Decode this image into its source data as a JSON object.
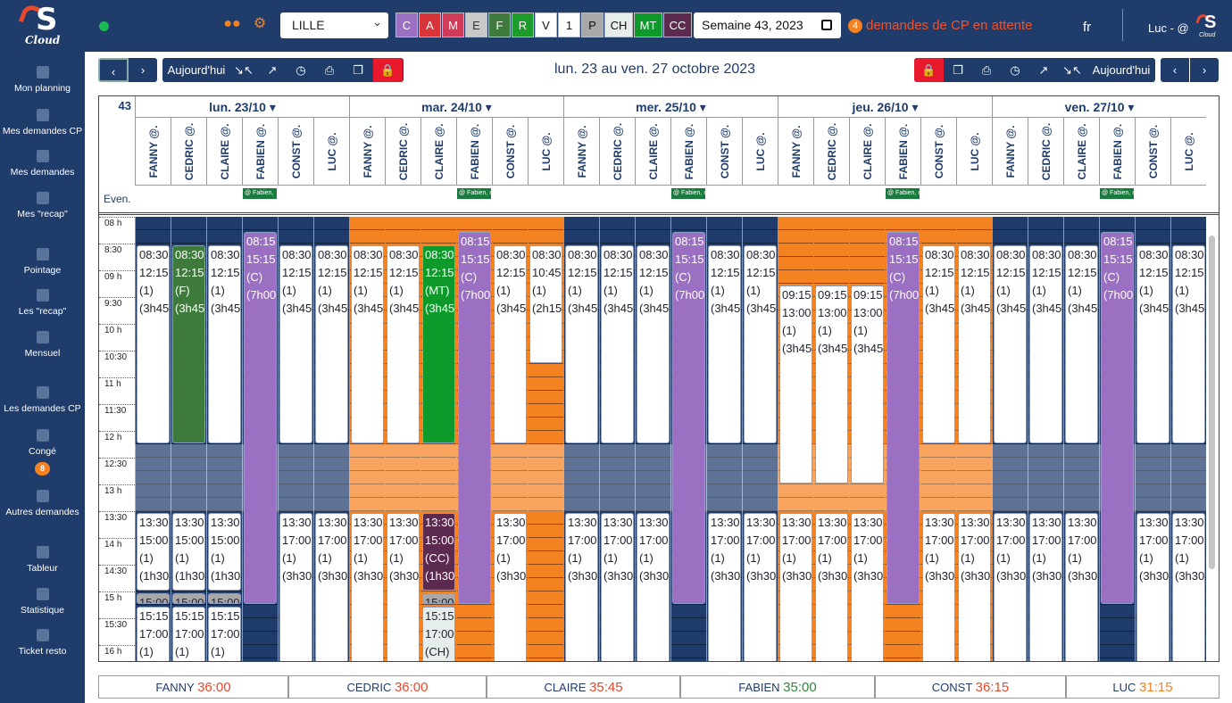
{
  "app": {
    "logo_text": "S",
    "logo_sub": "Cloud"
  },
  "sidebar": {
    "items": [
      {
        "label": "Mon planning",
        "icon": "calendar-icon"
      },
      {
        "label": "Mes demandes CP",
        "icon": "document-icon"
      },
      {
        "label": "Mes demandes",
        "icon": "document-icon"
      },
      {
        "label": "Mes \"recap\"",
        "icon": "clock-icon"
      },
      {
        "label": "Pointage",
        "icon": "pen-icon"
      },
      {
        "label": "Les \"recap\"",
        "icon": "table-icon"
      },
      {
        "label": "Mensuel",
        "icon": "calendar-icon"
      },
      {
        "label": "Les demandes CP",
        "icon": "documents-icon"
      },
      {
        "label": "Congé",
        "icon": "calendar-icon",
        "badge": "8"
      },
      {
        "label": "Autres demandes",
        "icon": "document-icon"
      },
      {
        "label": "Tableur",
        "icon": "pencil-icon"
      },
      {
        "label": "Statistique",
        "icon": "bar-chart-icon"
      },
      {
        "label": "Ticket resto",
        "icon": "rss-icon"
      }
    ]
  },
  "header": {
    "site": "LILLE",
    "legend": [
      {
        "code": "C",
        "bg": "#9b6fc1",
        "fg": "#fff"
      },
      {
        "code": "A",
        "bg": "#d9343a",
        "fg": "#fff"
      },
      {
        "code": "M",
        "bg": "#cf3b59",
        "fg": "#fff"
      },
      {
        "code": "E",
        "bg": "#c9c9c9",
        "fg": "#333"
      },
      {
        "code": "F",
        "bg": "#3e7a3c",
        "fg": "#fff"
      },
      {
        "code": "R",
        "bg": "#1d9b2b",
        "fg": "#fff"
      },
      {
        "code": "V",
        "bg": "#ffffff",
        "fg": "#111"
      },
      {
        "code": "1",
        "bg": "#ffffff",
        "fg": "#111"
      },
      {
        "code": "P",
        "bg": "#a8a8a8",
        "fg": "#111"
      },
      {
        "code": "CH",
        "bg": "#e6eeec",
        "fg": "#111"
      },
      {
        "code": "MT",
        "bg": "#0e9a2a",
        "fg": "#fff"
      },
      {
        "code": "CC",
        "bg": "#5b2a4e",
        "fg": "#fff"
      }
    ],
    "week": "Semaine 43, 2023",
    "pending_count": "4",
    "pending_text": "demandes de CP en attente",
    "lang": "fr",
    "user": "Luc - @"
  },
  "toolbar": {
    "today": "Aujourd'hui",
    "range": "lun. 23 au ven. 27 octobre 2023",
    "prev": "‹",
    "next": "›"
  },
  "calendar": {
    "week_no": "43",
    "even_label": "Even.",
    "days": [
      {
        "label": "lun. 23/10 ▾",
        "event": "@ Fabien, ",
        "event_col": 3
      },
      {
        "label": "mar. 24/10 ▾",
        "event": "@ Fabien, c",
        "event_col": 3
      },
      {
        "label": "mer. 25/10 ▾",
        "event": "@ Fabien, c",
        "event_col": 3
      },
      {
        "label": "jeu. 26/10 ▾",
        "event": "@ Fabien, c",
        "event_col": 3
      },
      {
        "label": "ven. 27/10 ▾",
        "event": "@ Fabien, c",
        "event_col": 3
      }
    ],
    "employees": [
      "FANNY @.",
      "CEDRIC @.",
      "CLAIRE @.",
      "FABIEN @.",
      "CONST @.",
      "LUC @."
    ],
    "times": [
      "08 h",
      "8:30",
      "09 h",
      "9:30",
      "10 h",
      "10:30",
      "11 h",
      "11:30",
      "12 h",
      "12:30",
      "13 h",
      "13:30",
      "14 h",
      "14:30",
      "15 h",
      "15:30",
      "16 h"
    ],
    "day_colors": [
      "#1f3c6b",
      "#f58220",
      "#1f3c6b",
      "#f58220",
      "#1f3c6b"
    ],
    "blocks": [
      {
        "d": 0,
        "c": 0,
        "s": 8.5,
        "e": 12.25,
        "l": [
          "08:30",
          "12:15",
          "(1)",
          "(3h45"
        ]
      },
      {
        "d": 0,
        "c": 1,
        "s": 8.5,
        "e": 12.25,
        "l": [
          "08:30",
          "12:15",
          "(F)",
          "(3h45"
        ],
        "bg": "#3e7a3c",
        "fg": "#fff"
      },
      {
        "d": 0,
        "c": 2,
        "s": 8.5,
        "e": 12.25,
        "l": [
          "08:30",
          "12:15",
          "(1)",
          "(3h45"
        ]
      },
      {
        "d": 0,
        "c": 3,
        "s": 8.25,
        "e": 15.25,
        "l": [
          "08:15",
          "15:15",
          "(C)",
          "(7h00"
        ],
        "bg": "#9b6fc1",
        "fg": "#fff"
      },
      {
        "d": 0,
        "c": 4,
        "s": 8.5,
        "e": 12.25,
        "l": [
          "08:30",
          "12:15",
          "(1)",
          "(3h45"
        ]
      },
      {
        "d": 0,
        "c": 5,
        "s": 8.5,
        "e": 12.25,
        "l": [
          "08:30",
          "12:15",
          "(1)",
          "(3h45"
        ]
      },
      {
        "d": 0,
        "c": 0,
        "s": 13.5,
        "e": 15.0,
        "l": [
          "13:30",
          "15:00",
          "(1)",
          "(1h30"
        ]
      },
      {
        "d": 0,
        "c": 1,
        "s": 13.5,
        "e": 15.0,
        "l": [
          "13:30",
          "15:00",
          "(1)",
          "(1h30"
        ]
      },
      {
        "d": 0,
        "c": 2,
        "s": 13.5,
        "e": 15.0,
        "l": [
          "13:30",
          "15:00",
          "(1)",
          "(1h30"
        ]
      },
      {
        "d": 0,
        "c": 4,
        "s": 13.5,
        "e": 17.0,
        "l": [
          "13:30",
          "17:00",
          "(1)",
          "(3h30"
        ]
      },
      {
        "d": 0,
        "c": 5,
        "s": 13.5,
        "e": 17.0,
        "l": [
          "13:30",
          "17:00",
          "(1)",
          "(3h30"
        ]
      },
      {
        "d": 0,
        "c": 0,
        "s": 15.0,
        "e": 15.25,
        "l": [
          "15:00"
        ],
        "bg": "#a8a8a8"
      },
      {
        "d": 0,
        "c": 1,
        "s": 15.0,
        "e": 15.25,
        "l": [
          "15:00"
        ],
        "bg": "#a8a8a8"
      },
      {
        "d": 0,
        "c": 2,
        "s": 15.0,
        "e": 15.25,
        "l": [
          "15:00"
        ],
        "bg": "#a8a8a8"
      },
      {
        "d": 0,
        "c": 0,
        "s": 15.25,
        "e": 17.0,
        "l": [
          "15:15",
          "17:00",
          "(1)"
        ]
      },
      {
        "d": 0,
        "c": 1,
        "s": 15.25,
        "e": 17.0,
        "l": [
          "15:15",
          "17:00",
          "(1)"
        ]
      },
      {
        "d": 0,
        "c": 2,
        "s": 15.25,
        "e": 17.0,
        "l": [
          "15:15",
          "17:00",
          "(1)"
        ]
      },
      {
        "d": 1,
        "c": 0,
        "s": 8.5,
        "e": 12.25,
        "l": [
          "08:30",
          "12:15",
          "(1)",
          "(3h45"
        ]
      },
      {
        "d": 1,
        "c": 1,
        "s": 8.5,
        "e": 12.25,
        "l": [
          "08:30",
          "12:15",
          "(1)",
          "(3h45"
        ]
      },
      {
        "d": 1,
        "c": 2,
        "s": 8.5,
        "e": 12.25,
        "l": [
          "08:30",
          "12:15",
          "(MT)",
          "(3h45"
        ],
        "bg": "#0e9a2a",
        "fg": "#fff"
      },
      {
        "d": 1,
        "c": 3,
        "s": 8.25,
        "e": 15.25,
        "l": [
          "08:15",
          "15:15",
          "(C)",
          "(7h00"
        ],
        "bg": "#9b6fc1",
        "fg": "#fff"
      },
      {
        "d": 1,
        "c": 4,
        "s": 8.5,
        "e": 12.25,
        "l": [
          "08:30",
          "12:15",
          "(1)",
          "(3h45"
        ]
      },
      {
        "d": 1,
        "c": 5,
        "s": 8.5,
        "e": 10.75,
        "l": [
          "08:30",
          "10:45",
          "(1)",
          "(2h15"
        ]
      },
      {
        "d": 1,
        "c": 0,
        "s": 13.5,
        "e": 17.0,
        "l": [
          "13:30",
          "17:00",
          "(1)",
          "(3h30"
        ]
      },
      {
        "d": 1,
        "c": 1,
        "s": 13.5,
        "e": 17.0,
        "l": [
          "13:30",
          "17:00",
          "(1)",
          "(3h30"
        ]
      },
      {
        "d": 1,
        "c": 2,
        "s": 13.5,
        "e": 15.0,
        "l": [
          "13:30",
          "15:00",
          "(CC)",
          "(1h30"
        ],
        "bg": "#5b2a4e",
        "fg": "#fff"
      },
      {
        "d": 1,
        "c": 2,
        "s": 15.0,
        "e": 15.25,
        "l": [
          "15:00"
        ],
        "bg": "#a8a8a8"
      },
      {
        "d": 1,
        "c": 2,
        "s": 15.25,
        "e": 17.0,
        "l": [
          "15:15",
          "17:00",
          "(CH)"
        ],
        "bg": "#e6eeec"
      },
      {
        "d": 1,
        "c": 4,
        "s": 13.5,
        "e": 17.0,
        "l": [
          "13:30",
          "17:00",
          "(1)",
          "(3h30"
        ]
      },
      {
        "d": 2,
        "c": 0,
        "s": 8.5,
        "e": 12.25,
        "l": [
          "08:30",
          "12:15",
          "(1)",
          "(3h45"
        ]
      },
      {
        "d": 2,
        "c": 1,
        "s": 8.5,
        "e": 12.25,
        "l": [
          "08:30",
          "12:15",
          "(1)",
          "(3h45"
        ]
      },
      {
        "d": 2,
        "c": 2,
        "s": 8.5,
        "e": 12.25,
        "l": [
          "08:30",
          "12:15",
          "(1)",
          "(3h45"
        ]
      },
      {
        "d": 2,
        "c": 3,
        "s": 8.25,
        "e": 15.25,
        "l": [
          "08:15",
          "15:15",
          "(C)",
          "(7h00"
        ],
        "bg": "#9b6fc1",
        "fg": "#fff"
      },
      {
        "d": 2,
        "c": 4,
        "s": 8.5,
        "e": 12.25,
        "l": [
          "08:30",
          "12:15",
          "(1)",
          "(3h45"
        ]
      },
      {
        "d": 2,
        "c": 5,
        "s": 8.5,
        "e": 12.25,
        "l": [
          "08:30",
          "12:15",
          "(1)",
          "(3h45"
        ]
      },
      {
        "d": 2,
        "c": 0,
        "s": 13.5,
        "e": 17.0,
        "l": [
          "13:30",
          "17:00",
          "(1)",
          "(3h30"
        ]
      },
      {
        "d": 2,
        "c": 1,
        "s": 13.5,
        "e": 17.0,
        "l": [
          "13:30",
          "17:00",
          "(1)",
          "(3h30"
        ]
      },
      {
        "d": 2,
        "c": 2,
        "s": 13.5,
        "e": 17.0,
        "l": [
          "13:30",
          "17:00",
          "(1)",
          "(3h30"
        ]
      },
      {
        "d": 2,
        "c": 4,
        "s": 13.5,
        "e": 17.0,
        "l": [
          "13:30",
          "17:00",
          "(1)",
          "(3h30"
        ]
      },
      {
        "d": 2,
        "c": 5,
        "s": 13.5,
        "e": 17.0,
        "l": [
          "13:30",
          "17:00",
          "(1)",
          "(3h30"
        ]
      },
      {
        "d": 3,
        "c": 0,
        "s": 9.25,
        "e": 13.0,
        "l": [
          "09:15",
          "13:00",
          "(1)",
          "(3h45"
        ]
      },
      {
        "d": 3,
        "c": 1,
        "s": 9.25,
        "e": 13.0,
        "l": [
          "09:15",
          "13:00",
          "(1)",
          "(3h45"
        ]
      },
      {
        "d": 3,
        "c": 2,
        "s": 9.25,
        "e": 13.0,
        "l": [
          "09:15",
          "13:00",
          "(1)",
          "(3h45"
        ]
      },
      {
        "d": 3,
        "c": 3,
        "s": 8.25,
        "e": 15.25,
        "l": [
          "08:15",
          "15:15",
          "(C)",
          "(7h00"
        ],
        "bg": "#9b6fc1",
        "fg": "#fff"
      },
      {
        "d": 3,
        "c": 4,
        "s": 8.5,
        "e": 12.25,
        "l": [
          "08:30",
          "12:15",
          "(1)",
          "(3h45"
        ]
      },
      {
        "d": 3,
        "c": 5,
        "s": 8.5,
        "e": 12.25,
        "l": [
          "08:30",
          "12:15",
          "(1)",
          "(3h45"
        ]
      },
      {
        "d": 3,
        "c": 0,
        "s": 13.5,
        "e": 17.0,
        "l": [
          "13:30",
          "17:00",
          "(1)",
          "(3h30"
        ]
      },
      {
        "d": 3,
        "c": 1,
        "s": 13.5,
        "e": 17.0,
        "l": [
          "13:30",
          "17:00",
          "(1)",
          "(3h30"
        ]
      },
      {
        "d": 3,
        "c": 2,
        "s": 13.5,
        "e": 17.0,
        "l": [
          "13:30",
          "17:00",
          "(1)",
          "(3h30"
        ]
      },
      {
        "d": 3,
        "c": 4,
        "s": 13.5,
        "e": 17.0,
        "l": [
          "13:30",
          "17:00",
          "(1)",
          "(3h30"
        ]
      },
      {
        "d": 3,
        "c": 5,
        "s": 13.5,
        "e": 17.0,
        "l": [
          "13:30",
          "17:00",
          "(1)",
          "(3h30"
        ]
      },
      {
        "d": 4,
        "c": 0,
        "s": 8.5,
        "e": 12.25,
        "l": [
          "08:30",
          "12:15",
          "(1)",
          "(3h45"
        ]
      },
      {
        "d": 4,
        "c": 1,
        "s": 8.5,
        "e": 12.25,
        "l": [
          "08:30",
          "12:15",
          "(1)",
          "(3h45"
        ]
      },
      {
        "d": 4,
        "c": 2,
        "s": 8.5,
        "e": 12.25,
        "l": [
          "08:30",
          "12:15",
          "(1)",
          "(3h45"
        ]
      },
      {
        "d": 4,
        "c": 3,
        "s": 8.25,
        "e": 15.25,
        "l": [
          "08:15",
          "15:15",
          "(C)",
          "(7h00"
        ],
        "bg": "#9b6fc1",
        "fg": "#fff"
      },
      {
        "d": 4,
        "c": 4,
        "s": 8.5,
        "e": 12.25,
        "l": [
          "08:30",
          "12:15",
          "(1)",
          "(3h45"
        ]
      },
      {
        "d": 4,
        "c": 5,
        "s": 8.5,
        "e": 12.25,
        "l": [
          "08:30",
          "12:15",
          "(1)",
          "(3h45"
        ]
      },
      {
        "d": 4,
        "c": 0,
        "s": 13.5,
        "e": 17.0,
        "l": [
          "13:30",
          "17:00",
          "(1)",
          "(3h30"
        ]
      },
      {
        "d": 4,
        "c": 1,
        "s": 13.5,
        "e": 17.0,
        "l": [
          "13:30",
          "17:00",
          "(1)",
          "(3h30"
        ]
      },
      {
        "d": 4,
        "c": 2,
        "s": 13.5,
        "e": 17.0,
        "l": [
          "13:30",
          "17:00",
          "(1)",
          "(3h30"
        ]
      },
      {
        "d": 4,
        "c": 4,
        "s": 13.5,
        "e": 17.0,
        "l": [
          "13:30",
          "17:00",
          "(1)",
          "(3h30"
        ]
      },
      {
        "d": 4,
        "c": 5,
        "s": 13.5,
        "e": 17.0,
        "l": [
          "13:30",
          "17:00",
          "(1)",
          "(3h30"
        ]
      }
    ]
  },
  "totals": [
    {
      "name": "FANNY",
      "value": "36:00",
      "color": "#e8482b"
    },
    {
      "name": "CEDRIC",
      "value": "36:00",
      "color": "#e8482b"
    },
    {
      "name": "CLAIRE",
      "value": "35:45",
      "color": "#e8482b"
    },
    {
      "name": "FABIEN",
      "value": "35:00",
      "color": "#2a8a3a"
    },
    {
      "name": "CONST",
      "value": "36:15",
      "color": "#e8482b"
    },
    {
      "name": "LUC",
      "value": "31:15",
      "color": "#f58220"
    }
  ]
}
